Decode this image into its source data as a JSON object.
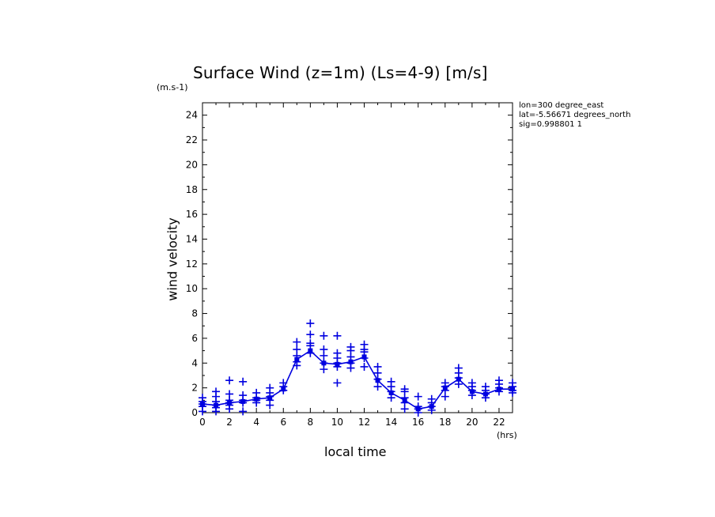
{
  "chart_data": {
    "type": "line",
    "title": "Surface Wind (z=1m) (Ls=4-9) [m/s]",
    "xlabel": "local time",
    "ylabel": "wind velocity",
    "x_units": "(hrs)",
    "y_units": "(m.s-1)",
    "xlim": [
      0,
      23
    ],
    "ylim": [
      0,
      25
    ],
    "x_ticks": [
      0,
      2,
      4,
      6,
      8,
      10,
      12,
      14,
      16,
      18,
      20,
      22
    ],
    "y_ticks": [
      0,
      2,
      4,
      6,
      8,
      10,
      12,
      14,
      16,
      18,
      20,
      22,
      24
    ],
    "annotations": [
      "lon=300 degree_east",
      "lat=-5.56671 degrees_north",
      "sig=0.998801 1"
    ],
    "color": "#0000e0",
    "series": [
      {
        "name": "mean",
        "x": [
          0,
          1,
          2,
          3,
          4,
          5,
          6,
          7,
          8,
          9,
          10,
          11,
          12,
          13,
          14,
          15,
          16,
          17,
          18,
          19,
          20,
          21,
          22,
          23
        ],
        "values": [
          0.7,
          0.6,
          0.8,
          0.9,
          1.1,
          1.2,
          1.9,
          4.3,
          5.0,
          4.0,
          3.9,
          4.1,
          4.5,
          2.6,
          1.6,
          1.0,
          0.3,
          0.5,
          2.0,
          2.7,
          1.7,
          1.5,
          1.9,
          1.9
        ]
      },
      {
        "name": "samples",
        "marker": "+",
        "points": [
          [
            0,
            0.1
          ],
          [
            0,
            0.5
          ],
          [
            0,
            0.7
          ],
          [
            0,
            0.9
          ],
          [
            0,
            1.2
          ],
          [
            1,
            0.1
          ],
          [
            1,
            0.4
          ],
          [
            1,
            0.6
          ],
          [
            1,
            0.9
          ],
          [
            1,
            1.3
          ],
          [
            1,
            1.7
          ],
          [
            2,
            0.3
          ],
          [
            2,
            0.6
          ],
          [
            2,
            0.8
          ],
          [
            2,
            1.0
          ],
          [
            2,
            1.5
          ],
          [
            2,
            2.6
          ],
          [
            3,
            0.1
          ],
          [
            3,
            0.8
          ],
          [
            3,
            1.0
          ],
          [
            3,
            1.4
          ],
          [
            3,
            2.5
          ],
          [
            4,
            0.8
          ],
          [
            4,
            1.0
          ],
          [
            4,
            1.2
          ],
          [
            4,
            1.6
          ],
          [
            5,
            0.6
          ],
          [
            5,
            1.0
          ],
          [
            5,
            1.3
          ],
          [
            5,
            1.6
          ],
          [
            5,
            2.0
          ],
          [
            6,
            1.8
          ],
          [
            6,
            2.1
          ],
          [
            6,
            2.4
          ],
          [
            7,
            3.8
          ],
          [
            7,
            4.1
          ],
          [
            7,
            4.6
          ],
          [
            7,
            5.1
          ],
          [
            7,
            5.7
          ],
          [
            8,
            4.8
          ],
          [
            8,
            5.4
          ],
          [
            8,
            5.6
          ],
          [
            8,
            6.3
          ],
          [
            8,
            7.2
          ],
          [
            9,
            3.5
          ],
          [
            9,
            4.0
          ],
          [
            9,
            4.6
          ],
          [
            9,
            5.1
          ],
          [
            9,
            6.2
          ],
          [
            10,
            2.4
          ],
          [
            10,
            3.7
          ],
          [
            10,
            4.0
          ],
          [
            10,
            4.4
          ],
          [
            10,
            4.8
          ],
          [
            10,
            6.2
          ],
          [
            11,
            3.6
          ],
          [
            11,
            4.0
          ],
          [
            11,
            4.5
          ],
          [
            11,
            5.0
          ],
          [
            11,
            5.3
          ],
          [
            12,
            3.7
          ],
          [
            12,
            4.4
          ],
          [
            12,
            4.9
          ],
          [
            12,
            5.1
          ],
          [
            12,
            5.5
          ],
          [
            13,
            2.1
          ],
          [
            13,
            2.7
          ],
          [
            13,
            3.2
          ],
          [
            13,
            3.7
          ],
          [
            14,
            1.2
          ],
          [
            14,
            1.7
          ],
          [
            14,
            2.1
          ],
          [
            14,
            2.5
          ],
          [
            15,
            0.3
          ],
          [
            15,
            0.8
          ],
          [
            15,
            1.2
          ],
          [
            15,
            1.7
          ],
          [
            15,
            1.9
          ],
          [
            16,
            0.0
          ],
          [
            16,
            0.3
          ],
          [
            16,
            0.5
          ],
          [
            16,
            1.3
          ],
          [
            17,
            0.2
          ],
          [
            17,
            0.5
          ],
          [
            17,
            0.8
          ],
          [
            17,
            1.1
          ],
          [
            18,
            1.3
          ],
          [
            18,
            1.8
          ],
          [
            18,
            2.1
          ],
          [
            18,
            2.4
          ],
          [
            19,
            2.3
          ],
          [
            19,
            2.8
          ],
          [
            19,
            3.2
          ],
          [
            19,
            3.6
          ],
          [
            20,
            1.4
          ],
          [
            20,
            1.8
          ],
          [
            20,
            2.1
          ],
          [
            20,
            2.4
          ],
          [
            21,
            1.2
          ],
          [
            21,
            1.5
          ],
          [
            21,
            1.8
          ],
          [
            21,
            2.1
          ],
          [
            22,
            1.7
          ],
          [
            22,
            2.0
          ],
          [
            22,
            2.3
          ],
          [
            22,
            2.6
          ],
          [
            23,
            1.6
          ],
          [
            23,
            1.8
          ],
          [
            23,
            2.1
          ],
          [
            23,
            2.4
          ]
        ]
      }
    ]
  }
}
